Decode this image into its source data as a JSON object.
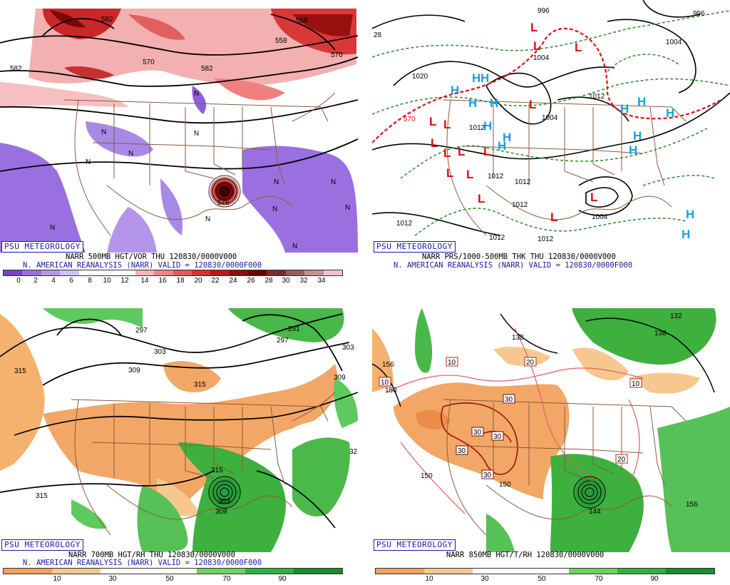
{
  "brand": "PSU METEOROLOGY",
  "panels": {
    "p1": {
      "title": "NARR 500MB HGT/VOR THU  120830/0000V000",
      "subtitle": "N. AMERICAN REANALYSIS (NARR) VALID = 120830/0000F000",
      "colorbar_ticks": [
        "0",
        "2",
        "4",
        "6",
        "8",
        "10",
        "12",
        "14",
        "16",
        "18",
        "20",
        "22",
        "24",
        "26",
        "28",
        "30",
        "32",
        "34"
      ],
      "colorbar_colors": [
        "#7b3fd0",
        "#9a6ee0",
        "#b595ea",
        "#d0c0f2",
        "#ffffff",
        "#ffffff",
        "#ffffff",
        "#f7b4b4",
        "#f08585",
        "#e65a5a",
        "#d83030",
        "#b81818",
        "#8c0a0a",
        "#6a0000",
        "#7a2a2a",
        "#9a5a5a",
        "#c49090",
        "#f1c0d8"
      ],
      "contour_labels": [
        "582",
        "582",
        "582",
        "558",
        "570",
        "570",
        "558",
        "576"
      ],
      "region_labels": [
        "N",
        "N",
        "N",
        "N",
        "N",
        "N",
        "N",
        "N",
        "N",
        "N",
        "N",
        "N"
      ]
    },
    "p2": {
      "title": "NARR PRS/1000-500MB THK THU  120830/0000V000",
      "subtitle": "N. AMERICAN REANALYSIS (NARR) VALID = 120830/0000F000",
      "contour_labels": [
        "1020",
        "1012",
        "1012",
        "1012",
        "1012",
        "1012",
        "1012",
        "1012",
        "1004",
        "1004",
        "1004",
        "996",
        "1004",
        "1012",
        "996",
        "570",
        "28"
      ],
      "high_marker": "H",
      "low_marker": "L"
    },
    "p3": {
      "title": "NARR 700MB HGT/RH THU  120830/0000V000",
      "subtitle": "N. AMERICAN REANALYSIS (NARR) VALID = 120830/0000F000",
      "colorbar_ticks": [
        "10",
        "30",
        "50",
        "70",
        "90"
      ],
      "colorbar_colors": [
        "#f0a060",
        "#f6c890",
        "#ffffff",
        "#ffffff",
        "#70d060",
        "#30b040",
        "#1a8a2a"
      ],
      "contour_labels": [
        "315",
        "297",
        "303",
        "309",
        "291",
        "297",
        "303",
        "309",
        "315",
        "315",
        "309",
        "303",
        "315",
        "32"
      ]
    },
    "p4": {
      "title": "NARR 850MB HGT/T/RH 120830/0000V000",
      "colorbar_ticks": [
        "10",
        "30",
        "50",
        "70",
        "90"
      ],
      "colorbar_colors": [
        "#f0a060",
        "#f6c890",
        "#ffffff",
        "#ffffff",
        "#70d060",
        "#30b040",
        "#1a8a2a"
      ],
      "contour_labels": [
        "156",
        "150",
        "150",
        "150",
        "144",
        "138",
        "132",
        "138",
        "156"
      ],
      "temp_labels": [
        "10",
        "10",
        "20",
        "30",
        "30",
        "30",
        "30",
        "30",
        "10",
        "20"
      ]
    }
  }
}
